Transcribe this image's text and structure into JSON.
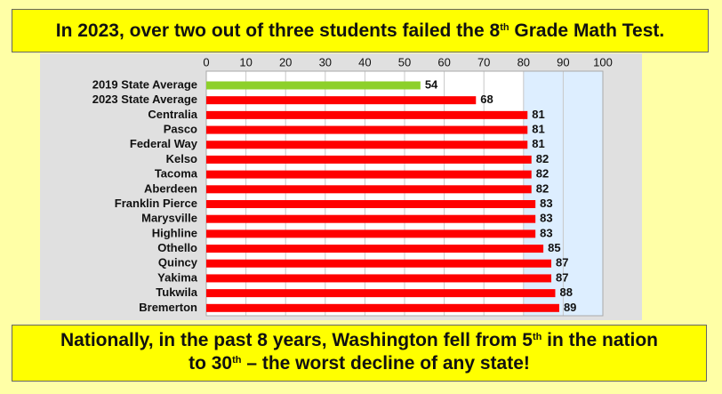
{
  "chart_data": {
    "type": "bar",
    "orientation": "horizontal",
    "title": [
      "In 2023, over two out of three students failed the 8",
      "th",
      " Grade Math Test."
    ],
    "footer": [
      [
        "Nationally, in the past 8 years, Washington fell from 5",
        "th",
        " in the nation"
      ],
      [
        "to 30",
        "th",
        " – the worst decline of any state!"
      ]
    ],
    "categories": [
      "2019 State Average",
      "2023 State Average",
      "Centralia",
      "Pasco",
      "Federal Way",
      "Kelso",
      "Tacoma",
      "Aberdeen",
      "Franklin Pierce",
      "Marysville",
      "Highline",
      "Othello",
      "Quincy",
      "Yakima",
      "Tukwila",
      "Bremerton"
    ],
    "values": [
      54,
      68,
      81,
      81,
      81,
      82,
      82,
      82,
      83,
      83,
      83,
      85,
      87,
      87,
      88,
      89
    ],
    "colors": [
      "#8dd02a",
      "#ff0000",
      "#ff0000",
      "#ff0000",
      "#ff0000",
      "#ff0000",
      "#ff0000",
      "#ff0000",
      "#ff0000",
      "#ff0000",
      "#ff0000",
      "#ff0000",
      "#ff0000",
      "#ff0000",
      "#ff0000",
      "#ff0000"
    ],
    "xlim": [
      0,
      100
    ],
    "xticks": [
      0,
      10,
      20,
      30,
      40,
      50,
      60,
      70,
      80,
      90,
      100
    ],
    "shaded_range": [
      80,
      100
    ],
    "shade_color": "#ddeeff",
    "grid": true
  }
}
